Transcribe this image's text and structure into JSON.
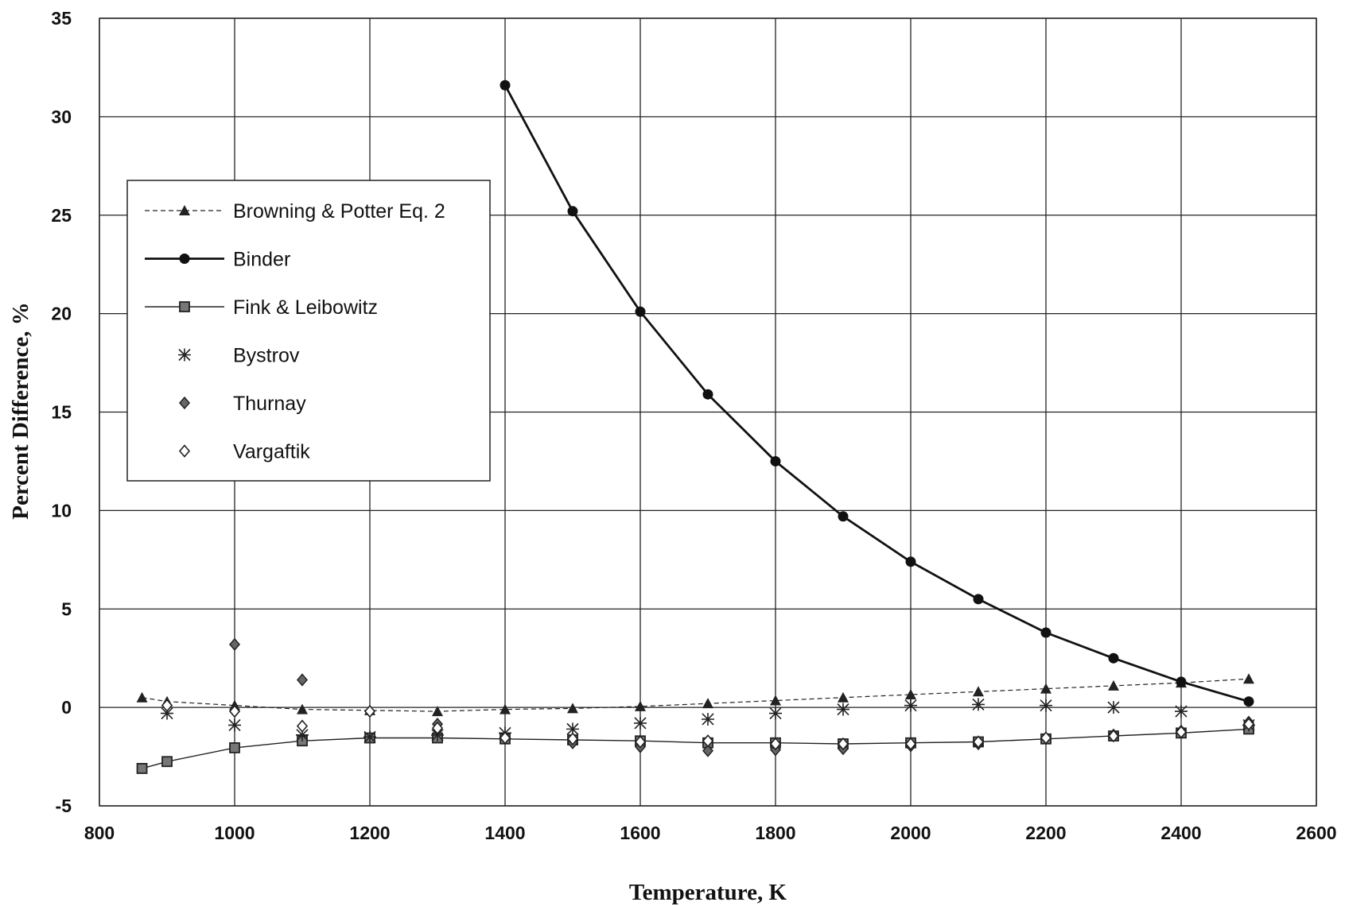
{
  "chart_data": {
    "type": "line",
    "xlabel": "Temperature, K",
    "ylabel": "Percent Difference, %",
    "xlim": [
      800,
      2600
    ],
    "ylim": [
      -5,
      35
    ],
    "x_ticks": [
      800,
      1000,
      1200,
      1400,
      1600,
      1800,
      2000,
      2200,
      2400,
      2600
    ],
    "y_ticks": [
      -5,
      0,
      5,
      10,
      15,
      20,
      25,
      30,
      35
    ],
    "grid": true,
    "legend_position": "upper-left",
    "series": [
      {
        "name": "Browning  & Potter  Eq. 2",
        "style": "dashed",
        "marker": "triangle",
        "color": "#222222",
        "x": [
          863,
          900,
          1000,
          1100,
          1200,
          1300,
          1400,
          1500,
          1600,
          1700,
          1800,
          1900,
          2000,
          2100,
          2200,
          2300,
          2400,
          2500
        ],
        "y": [
          0.5,
          0.3,
          0.1,
          -0.1,
          -0.15,
          -0.2,
          -0.1,
          -0.05,
          0.05,
          0.2,
          0.35,
          0.5,
          0.65,
          0.8,
          0.95,
          1.1,
          1.25,
          1.45
        ]
      },
      {
        "name": " Binder",
        "style": "solid-bold",
        "marker": "circle",
        "color": "#111111",
        "x": [
          1400,
          1500,
          1600,
          1700,
          1800,
          1900,
          2000,
          2100,
          2200,
          2300,
          2400,
          2500
        ],
        "y": [
          31.6,
          25.2,
          20.1,
          15.9,
          12.5,
          9.7,
          7.4,
          5.5,
          3.8,
          2.5,
          1.3,
          0.3
        ]
      },
      {
        "name": "Fink & Leibowitz",
        "style": "solid",
        "marker": "square",
        "color": "#222222",
        "x": [
          863,
          900,
          1000,
          1100,
          1200,
          1300,
          1400,
          1500,
          1600,
          1700,
          1800,
          1900,
          2000,
          2100,
          2200,
          2300,
          2400,
          2500
        ],
        "y": [
          -3.1,
          -2.75,
          -2.05,
          -1.7,
          -1.55,
          -1.55,
          -1.6,
          -1.65,
          -1.7,
          -1.8,
          -1.8,
          -1.85,
          -1.8,
          -1.75,
          -1.6,
          -1.45,
          -1.3,
          -1.1
        ]
      },
      {
        "name": "Bystrov",
        "style": "none",
        "marker": "star",
        "color": "#222222",
        "x": [
          900,
          1000,
          1100,
          1200,
          1300,
          1400,
          1500,
          1600,
          1700,
          1800,
          1900,
          2000,
          2100,
          2200,
          2300,
          2400,
          2500
        ],
        "y": [
          -0.3,
          -0.9,
          -1.4,
          -1.5,
          -1.4,
          -1.3,
          -1.1,
          -0.8,
          -0.6,
          -0.3,
          -0.1,
          0.1,
          0.15,
          0.1,
          0.0,
          -0.2,
          -0.9
        ]
      },
      {
        "name": "Thurnay",
        "style": "none",
        "marker": "diamond-filled",
        "color": "#222222",
        "x": [
          1000,
          1100,
          1300,
          1500,
          1600,
          1700,
          1800,
          1900,
          2000,
          2100,
          2300,
          2400,
          2500
        ],
        "y": [
          3.2,
          1.4,
          -0.85,
          -1.8,
          -2.0,
          -2.2,
          -2.15,
          -2.1,
          -1.95,
          -1.85,
          -1.4,
          -1.2,
          -0.75
        ]
      },
      {
        "name": "Vargaftik",
        "style": "none",
        "marker": "diamond-open",
        "color": "#222222",
        "x": [
          900,
          1000,
          1100,
          1200,
          1300,
          1400,
          1500,
          1600,
          1700,
          1800,
          1900,
          2000,
          2100,
          2200,
          2300,
          2400,
          2500
        ],
        "y": [
          0.1,
          -0.2,
          -0.95,
          -0.2,
          -1.05,
          -1.55,
          -1.6,
          -1.75,
          -1.7,
          -1.85,
          -1.85,
          -1.85,
          -1.75,
          -1.55,
          -1.45,
          -1.25,
          -0.85
        ]
      }
    ]
  }
}
